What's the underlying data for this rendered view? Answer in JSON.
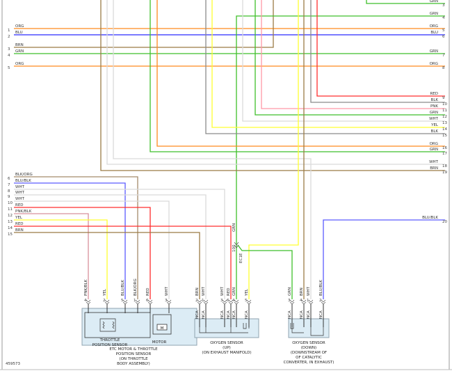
{
  "figure_id": "459573",
  "colors": {
    "ORG": "#ff8a1e",
    "BLU": "#2b2bff",
    "BRN": "#9a7b45",
    "GRN": "#3fbf2a",
    "RED": "#ff2d2d",
    "BLK": "#8a8a8a",
    "PNK": "#ff97a6",
    "WHT": "#dadada",
    "YEL": "#ffff30",
    "BLK/ORG": "#a58a6a",
    "BLU/BLK": "#5a5aff",
    "PNK/BLK": "#d8909c",
    "component_fill": "#dcecf5",
    "component_stroke": "#8fa3b0"
  },
  "left_wires": [
    {
      "num": "1",
      "color": "ORG"
    },
    {
      "num": "2",
      "color": "BLU"
    },
    {
      "num": "3",
      "color": "BRN"
    },
    {
      "num": "4",
      "color": "GRN"
    },
    {
      "num": "5",
      "color": "ORG"
    },
    {
      "num": "6",
      "color": "BLK/ORG"
    },
    {
      "num": "7",
      "color": "BLU/BLK"
    },
    {
      "num": "8",
      "color": "WHT"
    },
    {
      "num": "9",
      "color": "WHT"
    },
    {
      "num": "10",
      "color": "WHT"
    },
    {
      "num": "11",
      "color": "RED"
    },
    {
      "num": "12",
      "color": "PNK/BLK"
    },
    {
      "num": "13",
      "color": "YEL"
    },
    {
      "num": "14",
      "color": "RED"
    },
    {
      "num": "15",
      "color": "BRN"
    }
  ],
  "right_wires": [
    {
      "num": "3",
      "color": "GRN"
    },
    {
      "num": "4",
      "color": "GRN"
    },
    {
      "num": "5",
      "color": "ORG"
    },
    {
      "num": "6",
      "color": "BLU"
    },
    {
      "num": "7",
      "color": "GRN"
    },
    {
      "num": "8",
      "color": "ORG"
    },
    {
      "num": "9",
      "color": "RED"
    },
    {
      "num": "10",
      "color": "BLK"
    },
    {
      "num": "11",
      "color": "PNK"
    },
    {
      "num": "12",
      "color": "GRN"
    },
    {
      "num": "13",
      "color": "WHT"
    },
    {
      "num": "14",
      "color": "YEL"
    },
    {
      "num": "15",
      "color": "BLK"
    },
    {
      "num": "16",
      "color": "ORG"
    },
    {
      "num": "17",
      "color": "GRN"
    },
    {
      "num": "18",
      "color": "WHT"
    },
    {
      "num": "19",
      "color": "BRN"
    },
    {
      "num": "20",
      "color": "BLU/BLK"
    }
  ],
  "inline_connector": {
    "wire": "GRN",
    "number": "100",
    "name": "EC1E"
  },
  "etc": {
    "pins": [
      {
        "wire": "PNK/BLK",
        "pin": "4"
      },
      {
        "wire": "YEL",
        "pin": "2"
      },
      {
        "wire": "BLU/BLK",
        "pin": "5"
      },
      {
        "wire": "BLK/ORG",
        "pin": "1"
      },
      {
        "wire": "RED",
        "pin": "6"
      },
      {
        "wire": "WHT",
        "pin": "3"
      }
    ],
    "sensor_label": [
      "THROTTLE",
      "POSITION SENSOR"
    ],
    "motor_label": "MOTOR",
    "motor_symbol": "M",
    "caption": [
      "ETC MOTOR & THROTTLE",
      "POSITION SENSOR",
      "(ON THROTTLE",
      "BODY ASSEMBLY)"
    ]
  },
  "o2_up": {
    "pins": [
      {
        "wire": "BRN",
        "pin": "2",
        "nca": "NCA"
      },
      {
        "wire": "WHT",
        "pin": "1",
        "nca": "NCA"
      },
      {
        "wire": "WHT",
        "pin": "3",
        "nca": "NCA"
      },
      {
        "wire": "RED",
        "pin": "6",
        "nca": "NCA"
      },
      {
        "wire": "GRN",
        "pin": "4",
        "nca": "NCA"
      },
      {
        "wire": "YEL",
        "pin": "5",
        "nca": "NCA"
      }
    ],
    "caption": [
      "OXYGEN SENSOR",
      "(UP)",
      "(ON EXHAUST MANIFOLD)"
    ]
  },
  "o2_down": {
    "pins": [
      {
        "wire": "GRN",
        "pin": "3",
        "nca": "NCA"
      },
      {
        "wire": "BRN",
        "pin": "4",
        "nca": "NCA"
      },
      {
        "wire": "WHT",
        "pin": "1",
        "nca": "NCA"
      },
      {
        "wire": "BLU/BLK",
        "pin": "2",
        "nca": "NCA"
      }
    ],
    "caption": [
      "OXYGEN SENSOR",
      "(DOWN)",
      "(DOWNSTREAM OF",
      "OF CATALYTIC",
      "CONVERTER, IN EXHAUST)"
    ]
  }
}
